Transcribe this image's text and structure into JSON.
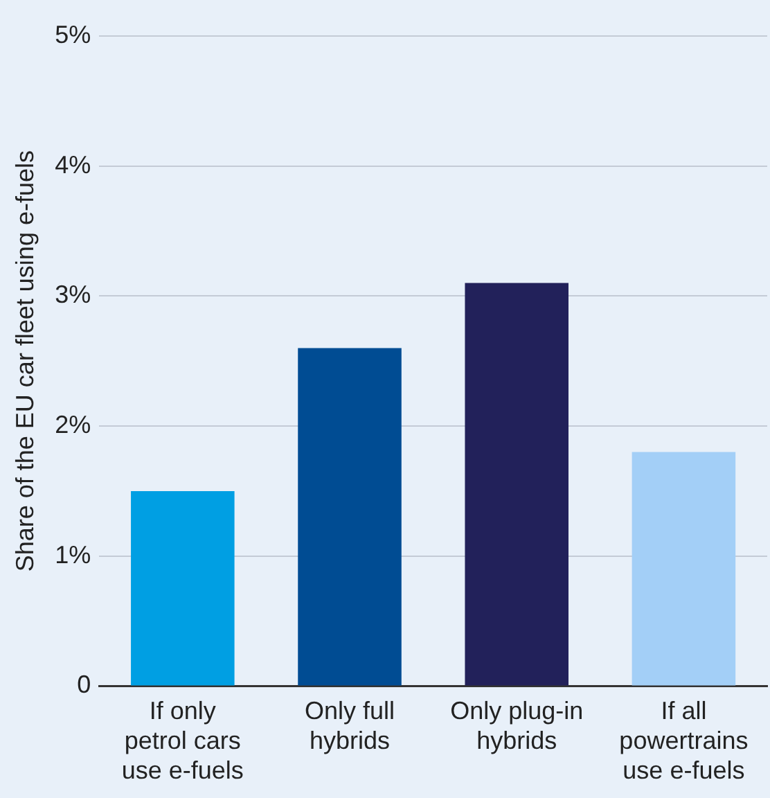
{
  "chart_data": {
    "type": "bar",
    "ylabel": "Share of the EU car fleet using e-fuels",
    "categories": [
      "If only petrol cars use e-fuels",
      "Only full hybrids",
      "Only plug-in hybrids",
      "If all powertrains use e-fuels"
    ],
    "values": [
      1.5,
      2.6,
      3.1,
      1.8
    ],
    "colors": [
      "#009fe3",
      "#004c93",
      "#22215a",
      "#a3cff7"
    ],
    "ylim": [
      0,
      5
    ],
    "yticks": [
      0,
      {
        "value": 1,
        "label": "1%"
      },
      {
        "value": 2,
        "label": "2%"
      },
      {
        "value": 3,
        "label": "3%"
      },
      {
        "value": 4,
        "label": "4%"
      },
      {
        "value": 5,
        "label": "5%"
      }
    ],
    "grid": "y",
    "legend": false
  }
}
